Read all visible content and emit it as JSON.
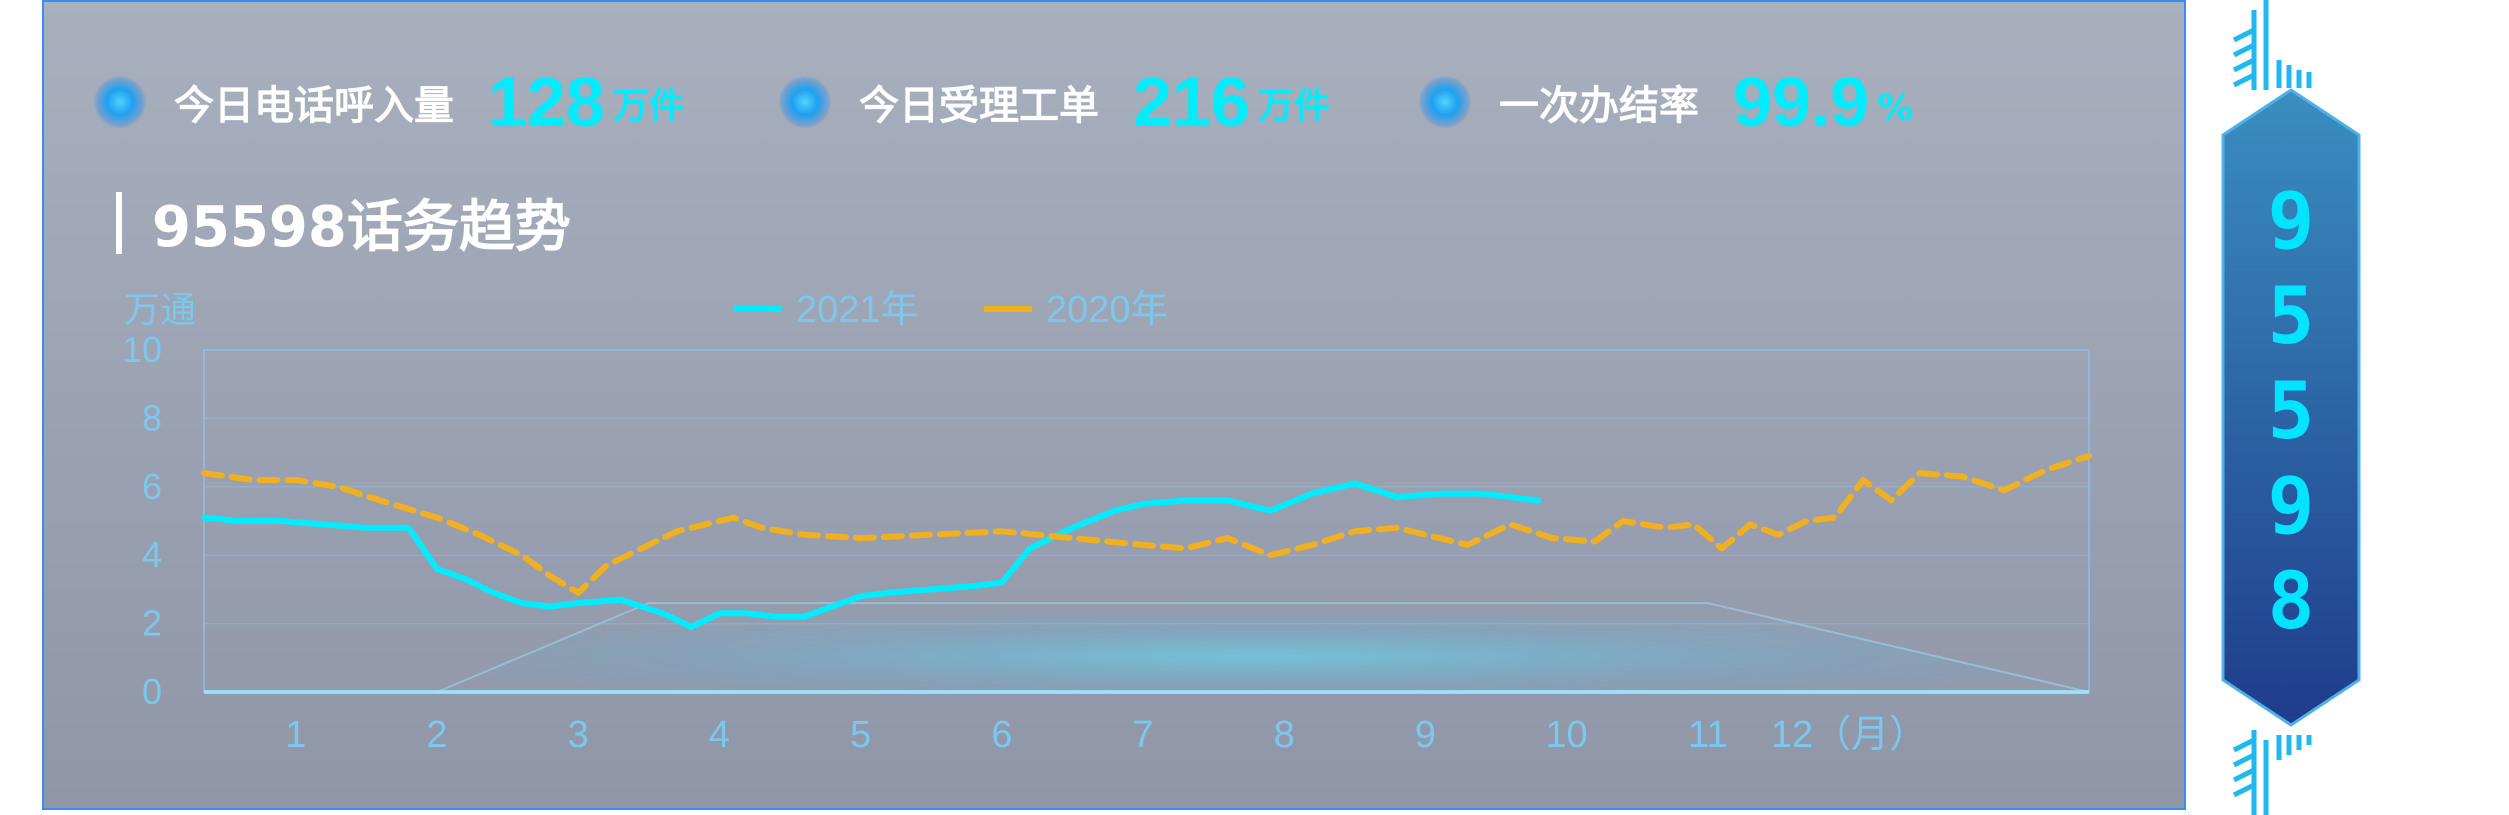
{
  "stats": [
    {
      "label": "今日电话呼入量",
      "value": "128",
      "unit": "万件"
    },
    {
      "label": "今日受理工单",
      "value": "216",
      "unit": "万件"
    },
    {
      "label": "一次办结率",
      "value": "99.9",
      "unit": "%"
    }
  ],
  "section_title": "95598话务趋势",
  "side_digits": [
    "9",
    "5",
    "5",
    "9",
    "8"
  ],
  "colors": {
    "s2021": "#00ecff",
    "s2020": "#f0b020",
    "axis": "#8cc8f0",
    "tick": "#7cc8ec"
  },
  "chart_data": {
    "type": "line",
    "ylabel": "万通",
    "ylim": [
      0,
      10
    ],
    "y_ticks": [
      "10",
      "8",
      "6",
      "4",
      "2",
      "0"
    ],
    "x_ticks": [
      "1",
      "2",
      "3",
      "4",
      "5",
      "6",
      "7",
      "8",
      "9",
      "10",
      "11",
      "12（月）"
    ],
    "xlim": [
      0.35,
      13.7
    ],
    "series": [
      {
        "name": "2021年",
        "style": "solid",
        "x": [
          0.35,
          0.6,
          0.9,
          1.2,
          1.5,
          1.8,
          1.9,
          2.0,
          2.2,
          2.4,
          2.6,
          2.8,
          3.0,
          3.3,
          3.6,
          3.8,
          4.0,
          4.2,
          4.4,
          4.6,
          4.8,
          5.0,
          5.2,
          5.5,
          5.8,
          6.0,
          6.2,
          6.5,
          6.8,
          7.0,
          7.3,
          7.6,
          7.9,
          8.2,
          8.5,
          8.8,
          9.1,
          9.4,
          9.8
        ],
        "y": [
          5.1,
          5.0,
          5.0,
          4.9,
          4.8,
          4.8,
          4.2,
          3.6,
          3.3,
          2.9,
          2.6,
          2.5,
          2.6,
          2.7,
          2.3,
          1.9,
          2.3,
          2.3,
          2.2,
          2.2,
          2.5,
          2.8,
          2.9,
          3.0,
          3.1,
          3.2,
          4.2,
          4.8,
          5.3,
          5.5,
          5.6,
          5.6,
          5.3,
          5.8,
          6.1,
          5.7,
          5.8,
          5.8,
          5.6
        ]
      },
      {
        "name": "2020年",
        "style": "dashed",
        "x": [
          0.35,
          0.7,
          1.0,
          1.3,
          1.6,
          2.0,
          2.3,
          2.6,
          2.8,
          3.0,
          3.2,
          3.5,
          3.7,
          3.9,
          4.1,
          4.3,
          4.6,
          5.0,
          5.5,
          6.0,
          6.5,
          7.0,
          7.3,
          7.6,
          7.9,
          8.2,
          8.5,
          8.8,
          9.0,
          9.3,
          9.6,
          9.9,
          10.2,
          10.4,
          10.7,
          10.9,
          11.1,
          11.3,
          11.5,
          11.7,
          11.9,
          12.1,
          12.3,
          12.5,
          12.8,
          13.1,
          13.4,
          13.7
        ],
        "y": [
          6.4,
          6.2,
          6.2,
          6.0,
          5.6,
          5.1,
          4.6,
          4.0,
          3.4,
          2.9,
          3.7,
          4.3,
          4.7,
          4.9,
          5.1,
          4.8,
          4.6,
          4.5,
          4.6,
          4.7,
          4.5,
          4.3,
          4.2,
          4.5,
          4.0,
          4.3,
          4.7,
          4.8,
          4.6,
          4.3,
          4.9,
          4.5,
          4.4,
          5.0,
          4.8,
          4.9,
          4.2,
          4.9,
          4.6,
          5.0,
          5.1,
          6.2,
          5.6,
          6.4,
          6.3,
          5.9,
          6.5,
          6.9
        ]
      }
    ]
  }
}
